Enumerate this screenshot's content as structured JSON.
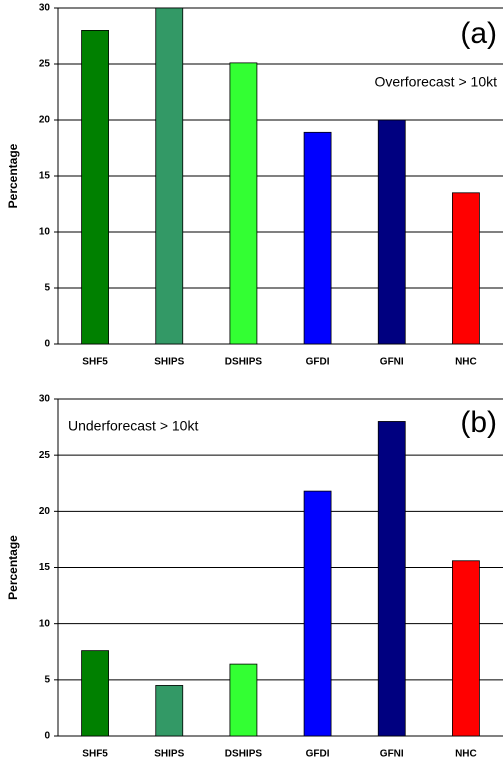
{
  "chart_data": [
    {
      "type": "bar",
      "annotation_panel": "(a)",
      "annotation": "Overforecast > 10kt",
      "y_label": "Percentage",
      "categories": [
        "SHF5",
        "SHIPS",
        "DSHIPS",
        "GFDI",
        "GFNI",
        "NHC"
      ],
      "values": [
        28,
        30,
        25.1,
        18.9,
        20,
        13.5
      ],
      "colors": [
        "#008000",
        "#339966",
        "#33ff33",
        "#0000ff",
        "#000080",
        "#ff0000"
      ],
      "ylim": [
        0,
        30
      ],
      "yticks": [
        0,
        5,
        10,
        15,
        20,
        25,
        30
      ],
      "grid": true
    },
    {
      "type": "bar",
      "annotation_panel": "(b)",
      "annotation": "Underforecast > 10kt",
      "y_label": "Percentage",
      "categories": [
        "SHF5",
        "SHIPS",
        "DSHIPS",
        "GFDI",
        "GFNI",
        "NHC"
      ],
      "values": [
        7.6,
        4.5,
        6.4,
        21.8,
        28,
        15.6
      ],
      "colors": [
        "#008000",
        "#339966",
        "#33ff33",
        "#0000ff",
        "#000080",
        "#ff0000"
      ],
      "ylim": [
        0,
        30
      ],
      "yticks": [
        0,
        5,
        10,
        15,
        20,
        25,
        30
      ],
      "grid": true
    }
  ]
}
